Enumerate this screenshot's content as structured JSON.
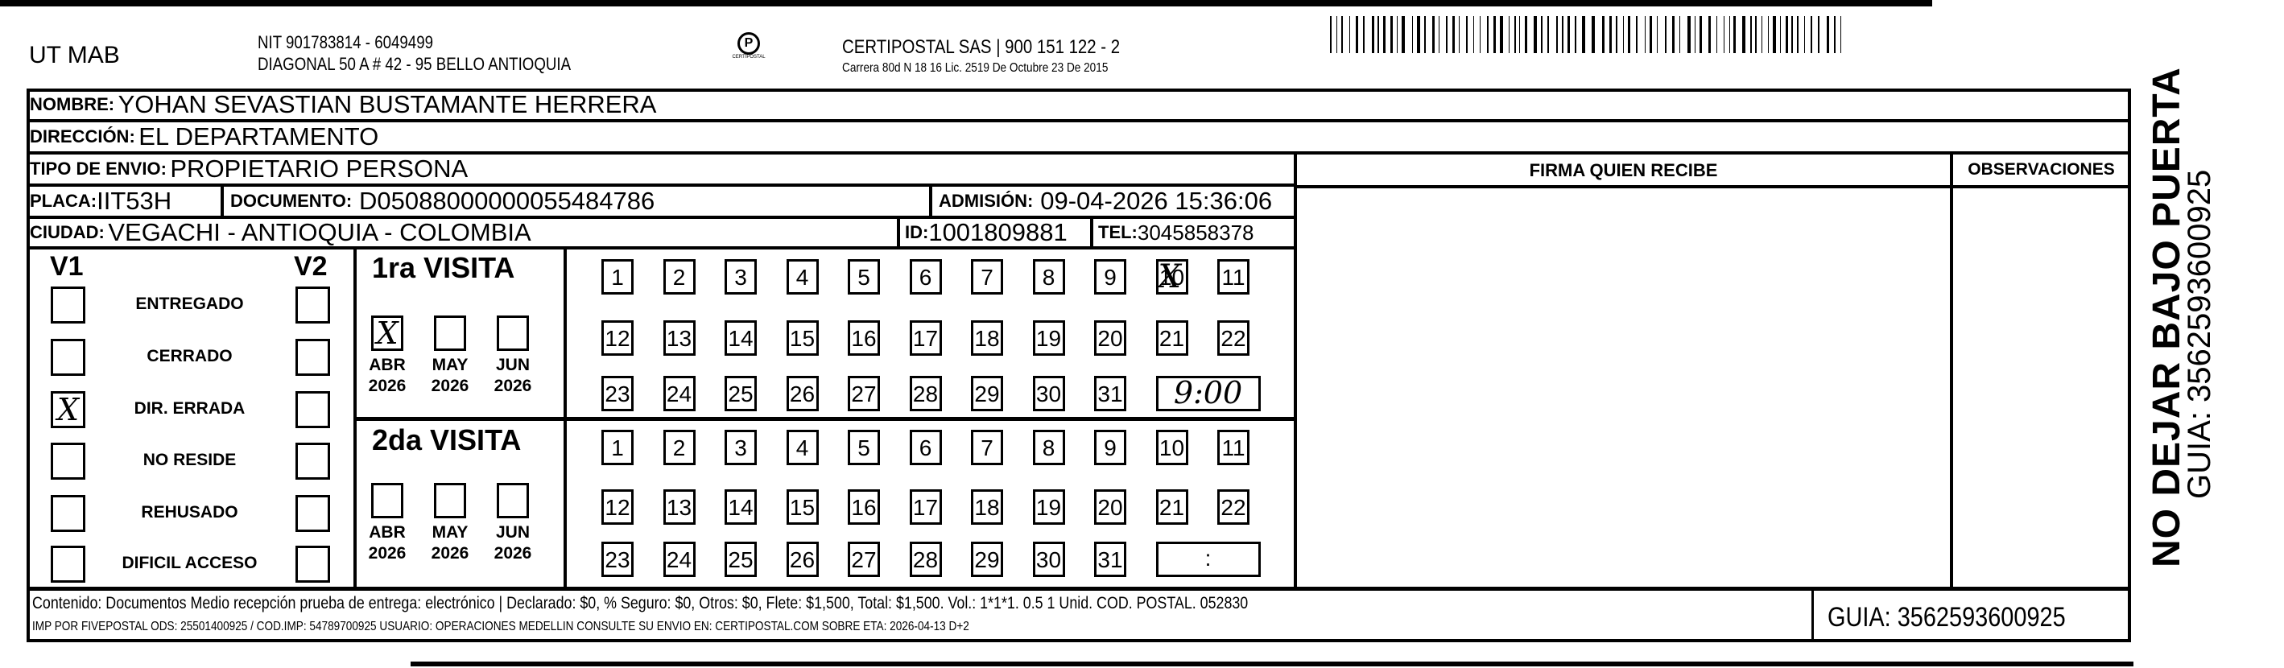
{
  "header": {
    "company": "UT MAB",
    "nit": "NIT 901783814 - 6049499",
    "address": "DIAGONAL 50 A # 42 - 95  BELLO  ANTIOQUIA",
    "logo_text": "CERTIPOSTAL",
    "carrier": "CERTIPOSTAL SAS | 900 151 122 - 2",
    "carrier_license": "Carrera 80d N 18 16  Lic. 2519 De Octubre 23 De 2015",
    "barcode_icon": "barcode"
  },
  "recipient": {
    "nombre_label": "NOMBRE:",
    "nombre": "YOHAN SEVASTIAN BUSTAMANTE HERRERA",
    "direccion_label": "DIRECCIÓN:",
    "direccion": "EL DEPARTAMENTO",
    "tipo_label": "TIPO DE ENVIO:",
    "tipo": "PROPIETARIO PERSONA",
    "placa_label": "PLACA:",
    "placa": "IIT53H",
    "documento_label": "DOCUMENTO:",
    "documento": "D05088000000055484786",
    "admision_label": "ADMISIÓN:",
    "admision": "09-04-2026 15:36:06",
    "ciudad_label": "CIUDAD:",
    "ciudad": "VEGACHI - ANTIOQUIA - COLOMBIA",
    "id_label": "ID:",
    "id": "1001809881",
    "tel_label": "TEL:",
    "tel": "3045858378"
  },
  "signature": {
    "firma_label": "FIRMA QUIEN RECIBE",
    "observaciones_label": "OBSERVACIONES"
  },
  "status": {
    "v1_label": "V1",
    "v2_label": "V2",
    "items": [
      {
        "label": "ENTREGADO",
        "v1": false,
        "v2": false
      },
      {
        "label": "CERRADO",
        "v1": false,
        "v2": false
      },
      {
        "label": "DIR. ERRADA",
        "v1": true,
        "v2": false
      },
      {
        "label": "NO RESIDE",
        "v1": false,
        "v2": false
      },
      {
        "label": "REHUSADO",
        "v1": false,
        "v2": false
      },
      {
        "label": "DIFICIL ACCESO",
        "v1": false,
        "v2": false
      }
    ],
    "mark": "X"
  },
  "visits": [
    {
      "title": "1ra VISITA",
      "months": [
        {
          "m": "ABR",
          "y": "2026",
          "checked": true
        },
        {
          "m": "MAY",
          "y": "2026",
          "checked": false
        },
        {
          "m": "JUN",
          "y": "2026",
          "checked": false
        }
      ],
      "marked_day": 10,
      "time": "9:00"
    },
    {
      "title": "2da VISITA",
      "months": [
        {
          "m": "ABR",
          "y": "2026",
          "checked": false
        },
        {
          "m": "MAY",
          "y": "2026",
          "checked": false
        },
        {
          "m": "JUN",
          "y": "2026",
          "checked": false
        }
      ],
      "marked_day": null,
      "time": ":"
    }
  ],
  "footer": {
    "line1": "Contenido: Documentos Medio recepción prueba de entrega: electrónico | Declarado: $0, % Seguro: $0, Otros: $0, Flete: $1,500, Total: $1,500. Vol.: 1*1*1. 0.5  1 Unid. COD. POSTAL. 052830",
    "line2": "IMP POR FIVEPOSTAL ODS: 25501400925 / COD.IMP: 54789700925 USUARIO: OPERACIONES MEDELLIN CONSULTE SU ENVIO EN: CERTIPOSTAL.COM SOBRE ETA: 2026-04-13 D+2",
    "guia": "GUIA: 3562593600925"
  },
  "side": {
    "warning": "NO DEJAR BAJO PUERTA",
    "guia": "GUIA: 3562593600925"
  }
}
